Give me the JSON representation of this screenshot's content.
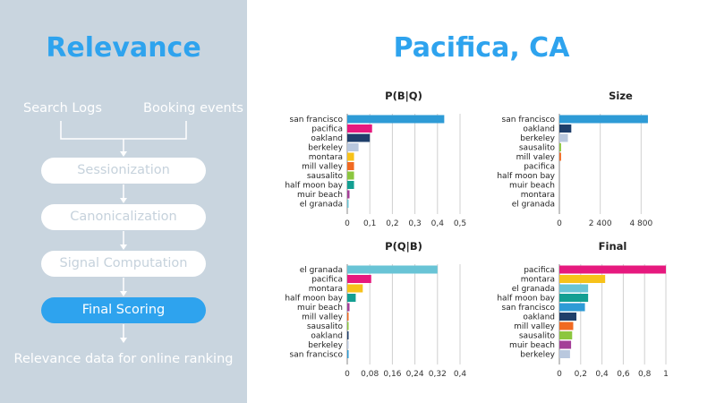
{
  "left": {
    "title": "Relevance",
    "sources": [
      "Search Logs",
      "Booking events"
    ],
    "steps": [
      {
        "label": "Sessionization",
        "active": false
      },
      {
        "label": "Canonicalization",
        "active": false
      },
      {
        "label": "Signal Computation",
        "active": false
      },
      {
        "label": "Final Scoring",
        "active": true
      }
    ],
    "output": "Relevance data for online ranking"
  },
  "main": {
    "title": "Pacifica, CA"
  },
  "colors": {
    "accent": "#2ea3ee",
    "panel_bg": "#c9d5df",
    "pill_inactive_text": "#c6d2dc"
  },
  "chart_data": [
    {
      "type": "bar",
      "orientation": "horizontal",
      "title": "P(B|Q)",
      "categories": [
        "san francisco",
        "pacifica",
        "oakland",
        "berkeley",
        "montara",
        "mill valley",
        "sausalito",
        "half moon bay",
        "muir beach",
        "el granada"
      ],
      "values": [
        0.43,
        0.11,
        0.1,
        0.05,
        0.03,
        0.03,
        0.03,
        0.03,
        0.01,
        0.005
      ],
      "colors": [
        "#2e9bd6",
        "#e6197e",
        "#1f3f6b",
        "#b9c8de",
        "#f7c21a",
        "#f16a22",
        "#8cc63f",
        "#139f92",
        "#a43f98",
        "#69c4d6"
      ],
      "xlim": [
        0,
        0.5
      ],
      "xticks": [
        "0",
        "0,1",
        "0,2",
        "0,3",
        "0,4",
        "0,5"
      ]
    },
    {
      "type": "bar",
      "orientation": "horizontal",
      "title": "Size",
      "categories": [
        "san francisco",
        "oakland",
        "berkeley",
        "sausalito",
        "mill valey",
        "pacifica",
        "half moon bay",
        "muir beach",
        "montara",
        "el granada"
      ],
      "values": [
        5200,
        700,
        500,
        100,
        100,
        0,
        0,
        0,
        0,
        0
      ],
      "colors": [
        "#2e9bd6",
        "#1f3f6b",
        "#b9c8de",
        "#8cc63f",
        "#f16a22",
        "#e6197e",
        "#139f92",
        "#a43f98",
        "#f7c21a",
        "#69c4d6"
      ],
      "xlim": [
        0,
        7200
      ],
      "xticks": [
        {
          "value": 0,
          "label": "0"
        },
        {
          "value": 2400,
          "label": "2 400"
        },
        {
          "value": 4800,
          "label": "4 800"
        }
      ]
    },
    {
      "type": "bar",
      "orientation": "horizontal",
      "title": "P(Q|B)",
      "categories": [
        "el granada",
        "pacifica",
        "montara",
        "half moon bay",
        "muir beach",
        "mill valley",
        "sausalito",
        "oakland",
        "berkeley",
        "san francisco"
      ],
      "values": [
        0.32,
        0.085,
        0.055,
        0.03,
        0.008,
        0.004,
        0.003,
        0.002,
        0.001,
        0.001
      ],
      "colors": [
        "#69c4d6",
        "#e6197e",
        "#f7c21a",
        "#139f92",
        "#a43f98",
        "#f16a22",
        "#8cc63f",
        "#1f3f6b",
        "#b9c8de",
        "#2e9bd6"
      ],
      "xlim": [
        0,
        0.4
      ],
      "xticks": [
        "0",
        "0,08",
        "0,16",
        "0,24",
        "0,32",
        "0,4"
      ]
    },
    {
      "type": "bar",
      "orientation": "horizontal",
      "title": "Final",
      "categories": [
        "pacifica",
        "montara",
        "el granada",
        "half moon bay",
        "san francisco",
        "oakland",
        "mill valley",
        "sausalito",
        "muir beach",
        "berkeley"
      ],
      "values": [
        1.0,
        0.43,
        0.27,
        0.27,
        0.24,
        0.16,
        0.13,
        0.12,
        0.11,
        0.1
      ],
      "colors": [
        "#e6197e",
        "#f7c21a",
        "#69c4d6",
        "#139f92",
        "#2e9bd6",
        "#1f3f6b",
        "#f16a22",
        "#8cc63f",
        "#a43f98",
        "#b9c8de"
      ],
      "xlim": [
        0,
        1
      ],
      "xticks": [
        "0",
        "0,2",
        "0,4",
        "0,6",
        "0,8",
        "1"
      ]
    }
  ]
}
